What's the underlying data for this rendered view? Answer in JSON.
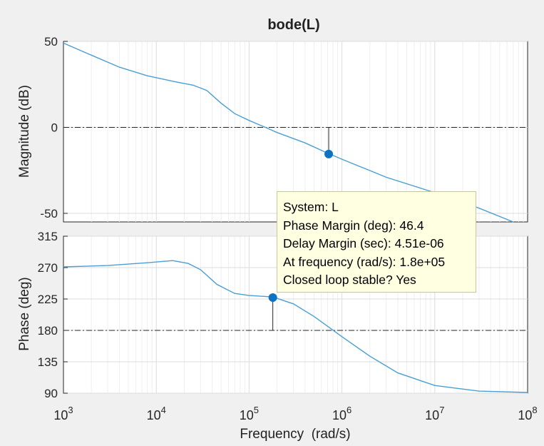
{
  "chart_data": {
    "type": "line",
    "title": "bode(L)",
    "xlabel": "Frequency  (rad/s)",
    "x_scale": "log",
    "xlim": [
      1000,
      100000000
    ],
    "x_ticks": [
      {
        "base": "10",
        "exp": "3"
      },
      {
        "base": "10",
        "exp": "4"
      },
      {
        "base": "10",
        "exp": "5"
      },
      {
        "base": "10",
        "exp": "6"
      },
      {
        "base": "10",
        "exp": "7"
      },
      {
        "base": "10",
        "exp": "8"
      }
    ],
    "grid": true,
    "panels": [
      {
        "name": "magnitude",
        "ylabel": "Magnitude (dB)",
        "ylim": [
          -55,
          50
        ],
        "y_ticks": [
          "50",
          "0",
          "-50"
        ],
        "reference_line": 0,
        "series": [
          {
            "color": "#4a9fd5",
            "points": [
              [
                1000,
                49
              ],
              [
                2000,
                42
              ],
              [
                4000,
                35
              ],
              [
                8000,
                30
              ],
              [
                16000,
                26.5
              ],
              [
                25000,
                24.5
              ],
              [
                35000,
                21.5
              ],
              [
                50000,
                14
              ],
              [
                70000,
                8
              ],
              [
                100000,
                4
              ],
              [
                150000,
                0
              ],
              [
                200000,
                -3
              ],
              [
                400000,
                -9
              ],
              [
                700000,
                -15
              ],
              [
                1000000,
                -18.5
              ],
              [
                3000000,
                -29
              ],
              [
                10000000,
                -38
              ],
              [
                30000000,
                -47
              ],
              [
                70000000,
                -55
              ]
            ]
          }
        ],
        "marker": {
          "x": 720000,
          "y": -15.5
        }
      },
      {
        "name": "phase",
        "ylabel": "Phase (deg)",
        "ylim": [
          90,
          315
        ],
        "y_ticks": [
          "315",
          "270",
          "225",
          "180",
          "135",
          "90"
        ],
        "reference_line": 180,
        "series": [
          {
            "color": "#4a9fd5",
            "points": [
              [
                1000,
                271
              ],
              [
                3000,
                273
              ],
              [
                8000,
                277
              ],
              [
                15000,
                280
              ],
              [
                22000,
                276
              ],
              [
                30000,
                267
              ],
              [
                45000,
                246
              ],
              [
                70000,
                233
              ],
              [
                100000,
                230
              ],
              [
                180000,
                228
              ],
              [
                300000,
                218
              ],
              [
                500000,
                200
              ],
              [
                1000000,
                171
              ],
              [
                2000000,
                143
              ],
              [
                4000000,
                119
              ],
              [
                10000000,
                101
              ],
              [
                30000000,
                93
              ],
              [
                100000000,
                91
              ]
            ]
          }
        ],
        "marker": {
          "x": 180000,
          "y": 227
        }
      }
    ],
    "datatip": [
      "System: L",
      "Phase Margin (deg): 46.4",
      "Delay Margin (sec): 4.51e-06",
      "At frequency (rad/s): 1.8e+05",
      "Closed loop stable? Yes"
    ]
  }
}
